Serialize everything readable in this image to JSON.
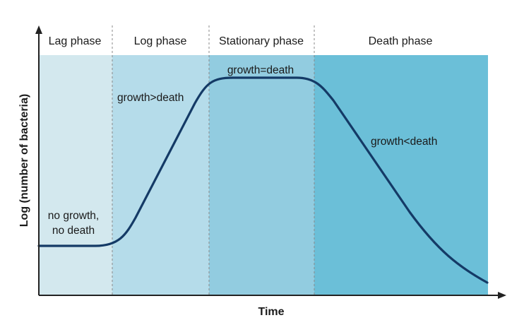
{
  "diagram": {
    "xlabel": "Time",
    "ylabel": "Log (number of bacteria)",
    "phases": [
      {
        "name": "Lag phase",
        "color": "#d3e8ee"
      },
      {
        "name": "Log phase",
        "color": "#b5dcea"
      },
      {
        "name": "Stationary phase",
        "color": "#92cce0"
      },
      {
        "name": "Death phase",
        "color": "#6bbfd8"
      }
    ],
    "annotations": {
      "lag_line1": "no growth,",
      "lag_line2": "no death",
      "log": "growth>death",
      "stationary": "growth=death",
      "death": "growth<death"
    },
    "curve_color": "#143a66",
    "axis_color": "#222222",
    "divider_color": "#8a8a8a"
  }
}
